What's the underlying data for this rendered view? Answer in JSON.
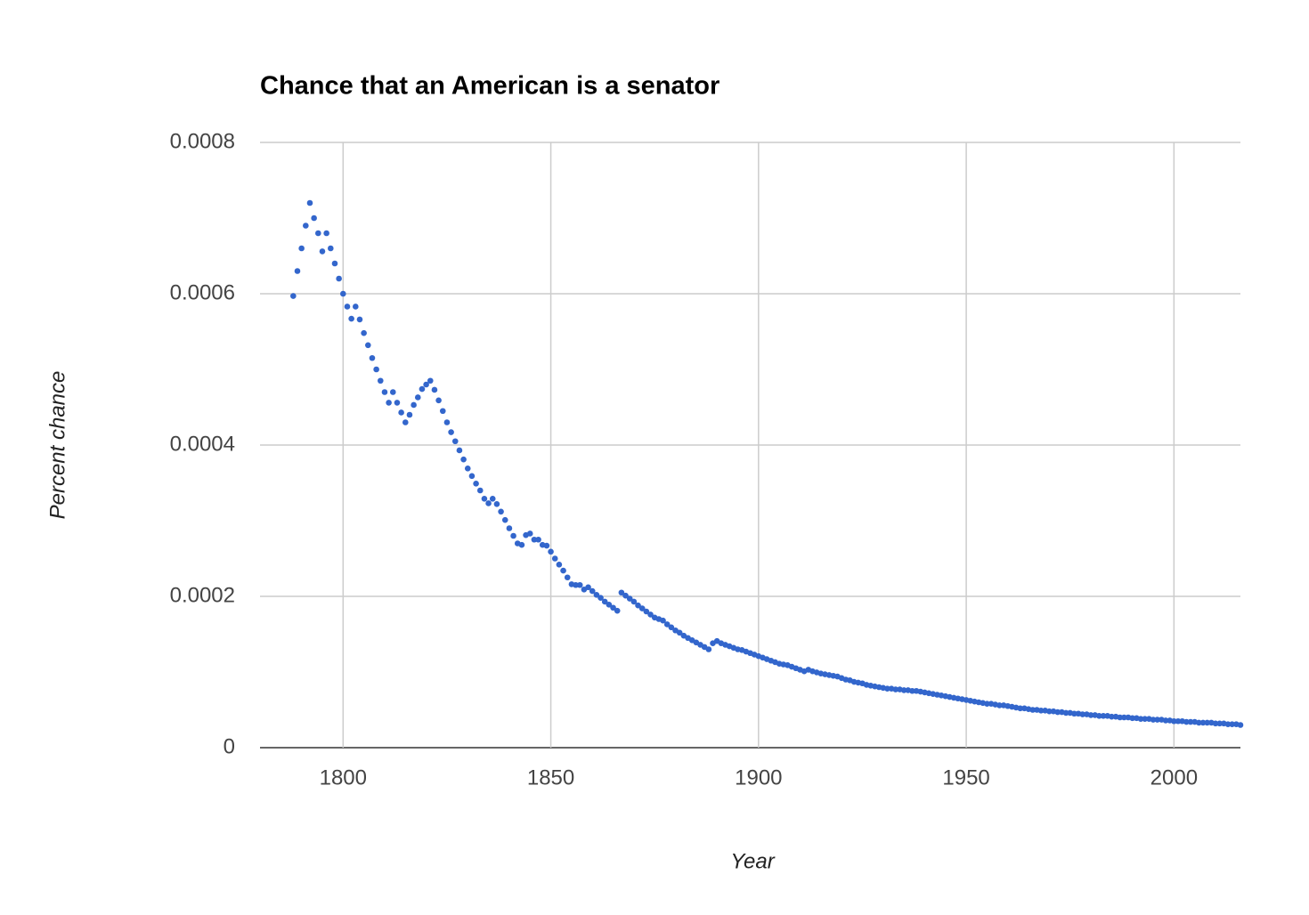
{
  "chart_data": {
    "type": "scatter",
    "title": "Chance that an American is a senator",
    "x_label": "Year",
    "y_label": "Percent chance",
    "color": "#3366cc",
    "grid": true,
    "xlim": [
      1780,
      2016
    ],
    "xticks": [
      1800,
      1850,
      1900,
      1950,
      2000
    ],
    "ylim": [
      0,
      0.0008
    ],
    "yticks": [
      0,
      0.0002,
      0.0004,
      0.0006,
      0.0008
    ],
    "x": [
      1788,
      1789,
      1790,
      1791,
      1792,
      1793,
      1794,
      1795,
      1796,
      1797,
      1798,
      1799,
      1800,
      1801,
      1802,
      1803,
      1804,
      1805,
      1806,
      1807,
      1808,
      1809,
      1810,
      1811,
      1812,
      1813,
      1814,
      1815,
      1816,
      1817,
      1818,
      1819,
      1820,
      1821,
      1822,
      1823,
      1824,
      1825,
      1826,
      1827,
      1828,
      1829,
      1830,
      1831,
      1832,
      1833,
      1834,
      1835,
      1836,
      1837,
      1838,
      1839,
      1840,
      1841,
      1842,
      1843,
      1844,
      1845,
      1846,
      1847,
      1848,
      1849,
      1850,
      1851,
      1852,
      1853,
      1854,
      1855,
      1856,
      1857,
      1858,
      1859,
      1860,
      1861,
      1862,
      1863,
      1864,
      1865,
      1866,
      1867,
      1868,
      1869,
      1870,
      1871,
      1872,
      1873,
      1874,
      1875,
      1876,
      1877,
      1878,
      1879,
      1880,
      1881,
      1882,
      1883,
      1884,
      1885,
      1886,
      1887,
      1888,
      1889,
      1890,
      1891,
      1892,
      1893,
      1894,
      1895,
      1896,
      1897,
      1898,
      1899,
      1900,
      1901,
      1902,
      1903,
      1904,
      1905,
      1906,
      1907,
      1908,
      1909,
      1910,
      1911,
      1912,
      1913,
      1914,
      1915,
      1916,
      1917,
      1918,
      1919,
      1920,
      1921,
      1922,
      1923,
      1924,
      1925,
      1926,
      1927,
      1928,
      1929,
      1930,
      1931,
      1932,
      1933,
      1934,
      1935,
      1936,
      1937,
      1938,
      1939,
      1940,
      1941,
      1942,
      1943,
      1944,
      1945,
      1946,
      1947,
      1948,
      1949,
      1950,
      1951,
      1952,
      1953,
      1954,
      1955,
      1956,
      1957,
      1958,
      1959,
      1960,
      1961,
      1962,
      1963,
      1964,
      1965,
      1966,
      1967,
      1968,
      1969,
      1970,
      1971,
      1972,
      1973,
      1974,
      1975,
      1976,
      1977,
      1978,
      1979,
      1980,
      1981,
      1982,
      1983,
      1984,
      1985,
      1986,
      1987,
      1988,
      1989,
      1990,
      1991,
      1992,
      1993,
      1994,
      1995,
      1996,
      1997,
      1998,
      1999,
      2000,
      2001,
      2002,
      2003,
      2004,
      2005,
      2006,
      2007,
      2008,
      2009,
      2010,
      2011,
      2012,
      2013,
      2014,
      2015,
      2016
    ],
    "values": [
      0.000597,
      0.00063,
      0.00066,
      0.00069,
      0.00072,
      0.0007,
      0.00068,
      0.000656,
      0.00068,
      0.00066,
      0.00064,
      0.00062,
      0.0006,
      0.000583,
      0.000567,
      0.000583,
      0.000566,
      0.000548,
      0.000532,
      0.000515,
      0.0005,
      0.000485,
      0.00047,
      0.000456,
      0.00047,
      0.000456,
      0.000443,
      0.00043,
      0.00044,
      0.000453,
      0.000463,
      0.000474,
      0.00048,
      0.000485,
      0.000473,
      0.000459,
      0.000445,
      0.00043,
      0.000417,
      0.000405,
      0.000393,
      0.000381,
      0.000369,
      0.000359,
      0.000349,
      0.00034,
      0.000329,
      0.000323,
      0.000329,
      0.000322,
      0.000312,
      0.000301,
      0.00029,
      0.00028,
      0.00027,
      0.000268,
      0.000281,
      0.000283,
      0.000275,
      0.000275,
      0.000268,
      0.000267,
      0.000259,
      0.00025,
      0.000242,
      0.000234,
      0.000225,
      0.000216,
      0.000215,
      0.000215,
      0.000209,
      0.000212,
      0.000207,
      0.000202,
      0.000198,
      0.000193,
      0.000189,
      0.000185,
      0.000181,
      0.000205,
      0.000201,
      0.000197,
      0.000193,
      0.000188,
      0.000184,
      0.00018,
      0.000176,
      0.000172,
      0.00017,
      0.000168,
      0.000163,
      0.000159,
      0.000155,
      0.000152,
      0.000148,
      0.000145,
      0.000142,
      0.000139,
      0.000136,
      0.000133,
      0.00013,
      0.000138,
      0.000141,
      0.000138,
      0.000136,
      0.000134,
      0.000132,
      0.00013,
      0.000129,
      0.000127,
      0.000125,
      0.000123,
      0.000121,
      0.000119,
      0.000117,
      0.000115,
      0.000113,
      0.000111,
      0.00011,
      0.000109,
      0.000107,
      0.000105,
      0.000103,
      0.000101,
      0.000103,
      0.000101,
      9.95e-05,
      9.8e-05,
      9.7e-05,
      9.6e-05,
      9.5e-05,
      9.4e-05,
      9.2e-05,
      9e-05,
      8.9e-05,
      8.7e-05,
      8.6e-05,
      8.5e-05,
      8.3e-05,
      8.2e-05,
      8.1e-05,
      8e-05,
      7.9e-05,
      7.8e-05,
      7.8e-05,
      7.7e-05,
      7.7e-05,
      7.6e-05,
      7.6e-05,
      7.5e-05,
      7.5e-05,
      7.4e-05,
      7.3e-05,
      7.2e-05,
      7.1e-05,
      7e-05,
      6.9e-05,
      6.8e-05,
      6.7e-05,
      6.6e-05,
      6.5e-05,
      6.4e-05,
      6.3e-05,
      6.2e-05,
      6.1e-05,
      6e-05,
      5.9e-05,
      5.8e-05,
      5.8e-05,
      5.7e-05,
      5.6e-05,
      5.6e-05,
      5.5e-05,
      5.4e-05,
      5.3e-05,
      5.2e-05,
      5.2e-05,
      5.1e-05,
      5e-05,
      5e-05,
      4.9e-05,
      4.9e-05,
      4.8e-05,
      4.8e-05,
      4.7e-05,
      4.7e-05,
      4.6e-05,
      4.6e-05,
      4.5e-05,
      4.5e-05,
      4.4e-05,
      4.4e-05,
      4.3e-05,
      4.3e-05,
      4.2e-05,
      4.2e-05,
      4.2e-05,
      4.1e-05,
      4.1e-05,
      4e-05,
      4e-05,
      4e-05,
      3.9e-05,
      3.9e-05,
      3.8e-05,
      3.8e-05,
      3.8e-05,
      3.7e-05,
      3.7e-05,
      3.7e-05,
      3.6e-05,
      3.6e-05,
      3.5e-05,
      3.5e-05,
      3.5e-05,
      3.4e-05,
      3.4e-05,
      3.4e-05,
      3.3e-05,
      3.3e-05,
      3.3e-05,
      3.3e-05,
      3.2e-05,
      3.2e-05,
      3.2e-05,
      3.1e-05,
      3.1e-05,
      3.1e-05,
      3e-05
    ]
  }
}
